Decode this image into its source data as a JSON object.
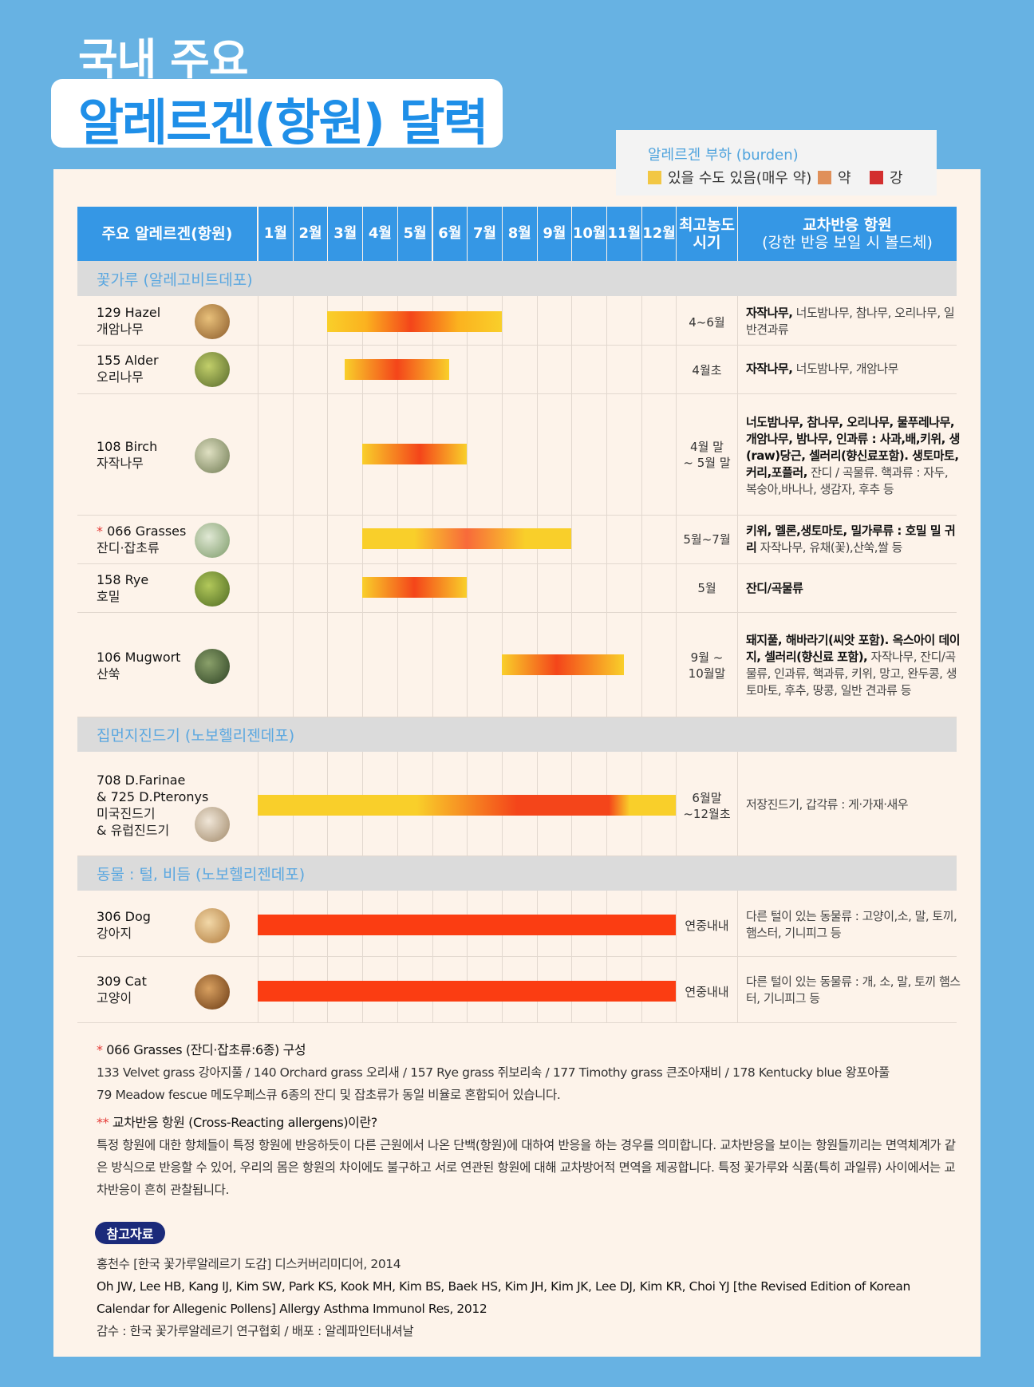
{
  "title": {
    "line1": "국내 주요",
    "line2": "알레르겐(항원) 달력"
  },
  "legend": {
    "title": "알레르겐 부하 (burden)",
    "items": [
      {
        "label": "있을 수도 있음(매우 약)",
        "color": "#f2c744"
      },
      {
        "label": "약",
        "color": "#e0905a"
      },
      {
        "label": "강",
        "color": "#d32f2f"
      }
    ]
  },
  "header": {
    "allergen": "주요 알레르겐(항원)",
    "months": [
      "1월",
      "2월",
      "3월",
      "4월",
      "5월",
      "6월",
      "7월",
      "8월",
      "9월",
      "10월",
      "11월",
      "12월"
    ],
    "peak_line1": "최고농도",
    "peak_line2": "시기",
    "cross_line1": "교차반응 항원",
    "cross_line2": "(강한 반응 보일 시 볼드체)"
  },
  "sections": {
    "pollen": "꽃가루 (알레고비트데포)",
    "mite": "집먼지진드기 (노보헬리젠데포)",
    "animal": "동물 : 털, 비듬 (노보헬리젠데포)"
  },
  "rows": [
    {
      "en": "129 Hazel",
      "ko": "개암나무",
      "peak": "4~6월",
      "cross_bold": "자작나무,",
      "cross_rest": " 너도밤나무, 참나무, 오리나무, 일반견과류",
      "start_month": 2.0,
      "end_month": 7.0,
      "photo_color": "#b8864a"
    },
    {
      "en": "155 Alder",
      "ko": "오리나무",
      "peak": "4월초",
      "cross_bold": "자작나무,",
      "cross_rest": " 너도밤나무, 개암나무",
      "start_month": 2.5,
      "end_month": 5.5,
      "photo_color": "#8a9a4a"
    },
    {
      "en": "108 Birch",
      "ko": "자작나무",
      "peak_line1": "4월 말",
      "peak_line2": "~ 5월 말",
      "cross_bold": "너도밤나무, 참나무, 오리나무, 물푸레나무, 개암나무, 밤나무, 인과류 : 사과,배,키위, 생(raw)당근, 셀러리(향신료포함). 생토마토, 커리,포플러,",
      "cross_rest": " 잔디 / 곡물류. 핵과류 : 자두, 복숭아,바나나, 생감자, 후추 등",
      "start_month": 3.0,
      "end_month": 6.0,
      "photo_color": "#9aa27a"
    },
    {
      "star": "*",
      "en": "066 Grasses",
      "ko": "잔디·잡초류",
      "peak": "5월~7월",
      "cross_bold": "키위, 멜론,생토마토, 밀가루류 : 호밀 밀 귀리",
      "cross_rest": " 자작나무, 유채(꽃),산쑥,쌀 등",
      "start_month": 3.0,
      "end_month": 9.0,
      "photo_color": "#a9b89a"
    },
    {
      "en": "158 Rye",
      "ko": "호밀",
      "peak": "5월",
      "cross_bold": "잔디/곡물류",
      "cross_rest": "",
      "start_month": 3.0,
      "end_month": 6.0,
      "photo_color": "#7d9a3c"
    },
    {
      "en": "106 Mugwort",
      "ko": "산쑥",
      "peak_line1": "9월 ~",
      "peak_line2": "10월말",
      "cross_bold": "돼지풀, 해바라기(씨앗 포함). 옥스아이 데이지, 셀러리(향신료 포함),",
      "cross_rest": " 자작나무, 잔디/곡물류, 인과류, 핵과류, 키위, 망고, 완두콩, 생토마토, 후추, 땅콩, 일반 견과류 등",
      "start_month": 7.0,
      "end_month": 10.5,
      "photo_color": "#4f6a3a"
    },
    {
      "en_line1": "708 D.Farinae",
      "en_line2": "& 725 D.Pteronys",
      "ko_line1": "미국진드기",
      "ko_line2": "& 유럽진드기",
      "peak_line1": "6월말",
      "peak_line2": "~12월초",
      "cross_bold": "",
      "cross_rest": "저장진드기, 갑각류 : 게·가재·새우",
      "start_month": 0.0,
      "end_month": 12.0,
      "photo_color": "#d9cbb6"
    },
    {
      "en": "306 Dog",
      "ko": "강아지",
      "peak": "연중내내",
      "cross_bold": "",
      "cross_rest": "다른 털이 있는 동물류 : 고양이,소, 말, 토끼, 햄스터, 기니피그 등",
      "start_month": 0.0,
      "end_month": 12.0,
      "photo_color": "#d2a066"
    },
    {
      "en": "309 Cat",
      "ko": "고양이",
      "peak": "연중내내",
      "cross_bold": "",
      "cross_rest": "다른 털이 있는 동물류 : 개, 소, 말, 토끼 햄스터, 기니피그 등",
      "start_month": 0.0,
      "end_month": 12.0,
      "photo_color": "#a8642e"
    }
  ],
  "notes": {
    "grasses_mark": "*",
    "grasses_title": "066 Grasses (잔디·잡초류:6종) 구성",
    "grasses_line1": "133 Velvet grass 강아지풀 / 140 Orchard grass 오리새 / 157 Rye grass 쥐보리속 / 177 Timothy grass 큰조아재비 / 178 Kentucky blue 왕포아풀",
    "grasses_line2": "79 Meadow fescue 메도우페스큐 6종의 잔디 및 잡초류가 동일 비율로 혼합되어 있습니다.",
    "cross_mark": "**",
    "cross_title": "교차반응 항원 (Cross-Reacting allergens)이란?",
    "cross_text": "특정 항원에 대한 항체들이 특정 항원에 반응하듯이 다른 근원에서 나온 단백(항원)에 대하여 반응을 하는 경우를 의미합니다. 교차반응을 보이는 항원들끼리는 면역체계가 같은 방식으로 반응할 수 있어, 우리의 몸은 항원의 차이에도 불구하고 서로 연관된 항원에 대해 교차방어적 면역을 제공합니다. 특정 꽃가루와 식품(특히 과일류) 사이에서는 교차반응이 흔히 관찰됩니다."
  },
  "references": {
    "badge": "참고자료",
    "ref1": "홍천수 [한국 꽃가루알레르기 도감] 디스커버리미디어, 2014",
    "ref2": "Oh JW, Lee HB, Kang IJ, Kim SW, Park KS, Kook MH, Kim BS, Baek HS, Kim JH, Kim JK, Lee DJ, Kim KR, Choi YJ [the Revised Edition of Korean Calendar for Allegenic Pollens] Allergy Asthma Immunol Res, 2012",
    "ref3": "감수 : 한국 꽃가루알레르기 연구협회 / 배포 : 알레파인터내셔날"
  }
}
